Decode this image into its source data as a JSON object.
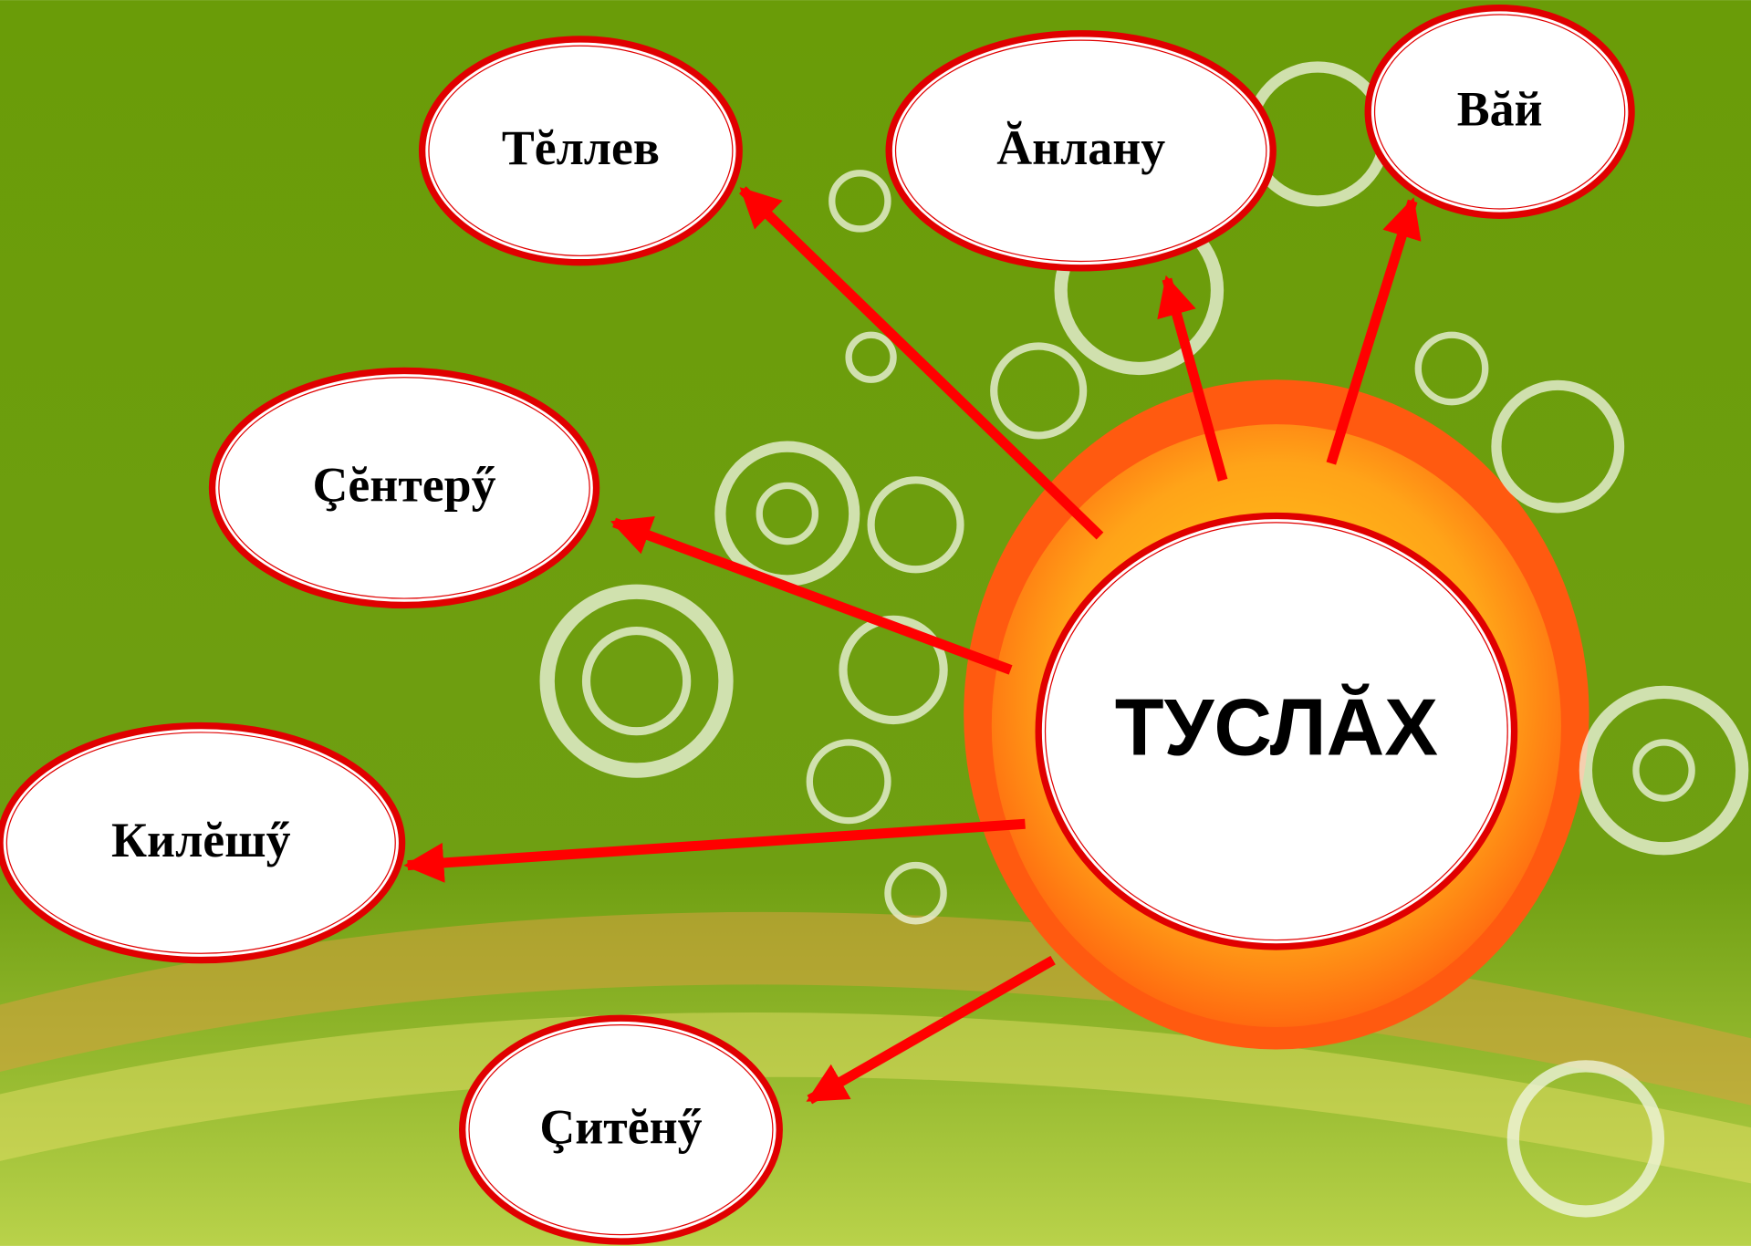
{
  "center": {
    "label": "ТУСЛĂХ"
  },
  "nodes": [
    {
      "label": "Тĕллев"
    },
    {
      "label": "Ăнлану"
    },
    {
      "label": "Вăй"
    },
    {
      "label": "Çĕнтерӳ"
    },
    {
      "label": "Килĕшӳ"
    },
    {
      "label": "Çитĕнӳ"
    }
  ]
}
